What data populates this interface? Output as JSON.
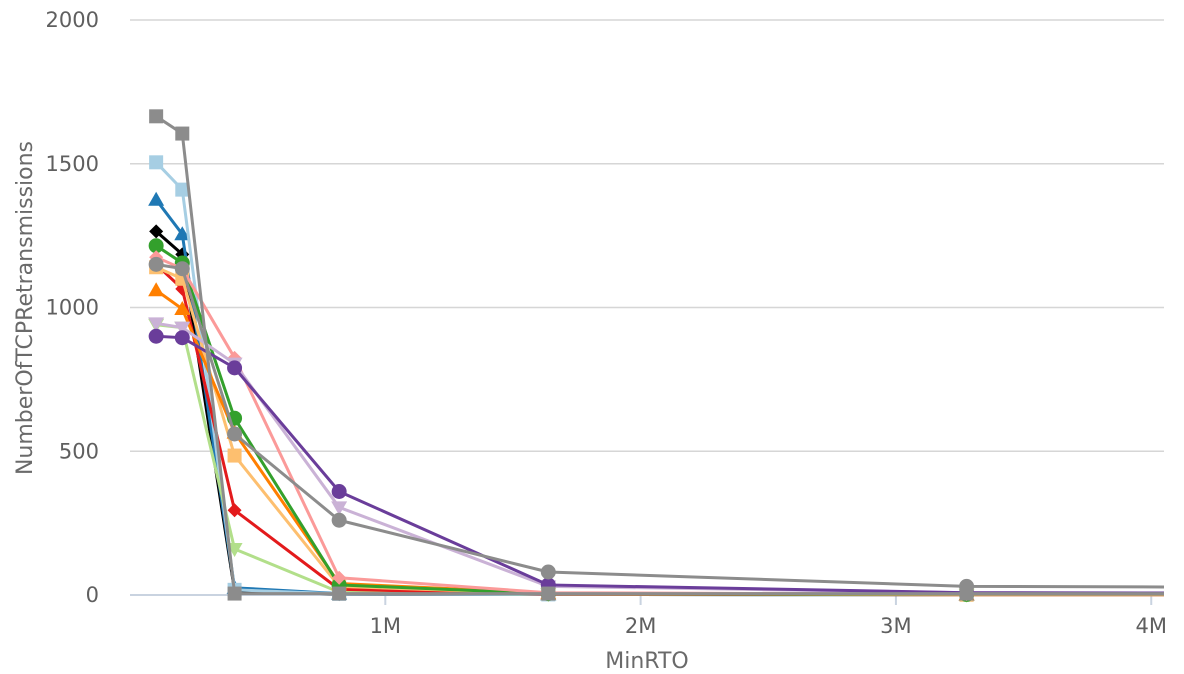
{
  "chart_data": {
    "type": "line",
    "xlabel": "MinRTO",
    "ylabel": "NumberOfTCPRetransmissions",
    "xlim": [
      0,
      4050000
    ],
    "ylim": [
      0,
      2000
    ],
    "x": [
      102400,
      204800,
      409600,
      819200,
      1638400,
      3276800,
      4050000
    ],
    "x_ticks": [
      {
        "value": 1000000,
        "label": "1M"
      },
      {
        "value": 2000000,
        "label": "2M"
      },
      {
        "value": 3000000,
        "label": "3M"
      },
      {
        "value": 4000000,
        "label": "4M"
      }
    ],
    "y_ticks": [
      {
        "value": 0,
        "label": "0"
      },
      {
        "value": 500,
        "label": "500"
      },
      {
        "value": 1000,
        "label": "1000"
      },
      {
        "value": 1500,
        "label": "1500"
      },
      {
        "value": 2000,
        "label": "2000"
      }
    ],
    "grid": "horizontal",
    "series": [
      {
        "color": "#000000",
        "marker": "diamond",
        "values": [
          1265,
          1185,
          15,
          3,
          2,
          1,
          1
        ]
      },
      {
        "color": "#1f78b4",
        "marker": "triangle",
        "values": [
          1375,
          1255,
          25,
          5,
          2,
          1,
          1
        ]
      },
      {
        "color": "#a6cee3",
        "marker": "square",
        "values": [
          1505,
          1410,
          18,
          4,
          2,
          1,
          1
        ]
      },
      {
        "color": "#b2df8a",
        "marker": "triangle-down",
        "values": [
          940,
          930,
          160,
          10,
          3,
          1,
          1
        ]
      },
      {
        "color": "#e31a1c",
        "marker": "diamond",
        "values": [
          1150,
          1065,
          295,
          20,
          3,
          1,
          1
        ]
      },
      {
        "color": "#fdbf6f",
        "marker": "square",
        "values": [
          1140,
          1100,
          485,
          30,
          5,
          1,
          1
        ]
      },
      {
        "color": "#ff7f00",
        "marker": "triangle",
        "values": [
          1060,
          995,
          565,
          40,
          6,
          2,
          2
        ]
      },
      {
        "color": "#33a02c",
        "marker": "circle",
        "values": [
          1215,
          1155,
          615,
          35,
          5,
          2,
          2
        ]
      },
      {
        "color": "#fb9a99",
        "marker": "diamond",
        "values": [
          1175,
          1135,
          825,
          60,
          8,
          3,
          3
        ]
      },
      {
        "color": "#cab2d6",
        "marker": "triangle-down",
        "values": [
          945,
          930,
          805,
          305,
          30,
          8,
          6
        ]
      },
      {
        "color": "#6a3d9a",
        "marker": "circle",
        "values": [
          900,
          895,
          790,
          360,
          35,
          8,
          7
        ]
      },
      {
        "color": "#8c8c8c",
        "marker": "circle",
        "values": [
          1150,
          1135,
          560,
          260,
          80,
          30,
          28
        ]
      },
      {
        "color": "#8c8c8c",
        "marker": "square",
        "values": [
          1665,
          1605,
          5,
          5,
          5,
          5,
          5
        ]
      }
    ]
  }
}
